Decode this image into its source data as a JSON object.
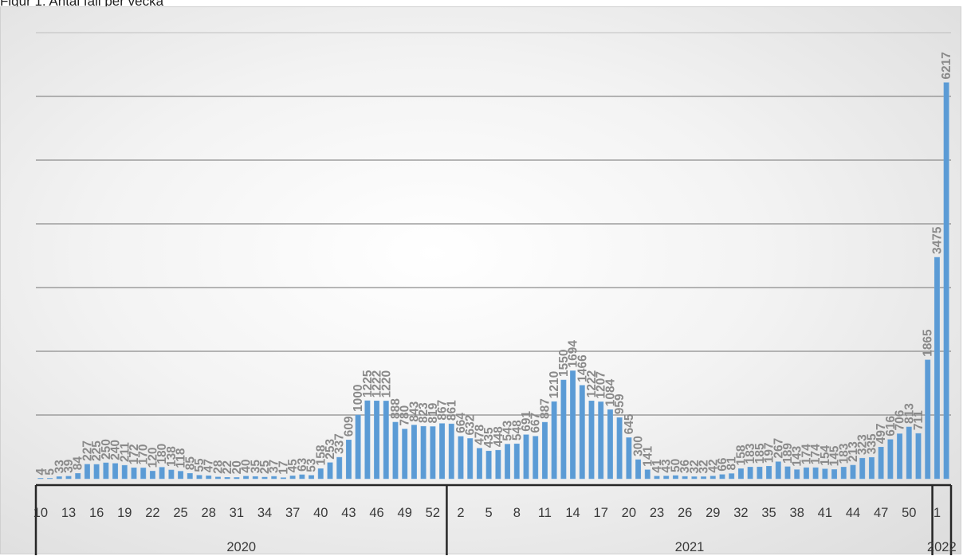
{
  "figure": {
    "caption": "Figur 1. Antal fall per vecka"
  },
  "chart_data": {
    "type": "bar",
    "title": "Figur 1. Antal fall per vecka",
    "xlabel": "",
    "ylabel": "",
    "ylim": [
      0,
      7000
    ],
    "y_gridlines": [
      1000,
      2000,
      3000,
      4000,
      5000,
      6000
    ],
    "grid": true,
    "legend": "none",
    "colors": {
      "bar": "#5b9bd5",
      "bar_edge": "#6fa8dc",
      "grid": "#8c8c8c",
      "axis": "#262626",
      "labels": "#8a8a8a"
    },
    "years": [
      {
        "label": "2020",
        "weeks": [
          10,
          11,
          12,
          13,
          14,
          15,
          16,
          17,
          18,
          19,
          20,
          21,
          22,
          23,
          24,
          25,
          26,
          27,
          28,
          29,
          30,
          31,
          32,
          33,
          34,
          35,
          36,
          37,
          38,
          39,
          40,
          41,
          42,
          43,
          44,
          45,
          46,
          47,
          48,
          49,
          50,
          51,
          52,
          53
        ]
      },
      {
        "label": "2021",
        "weeks": [
          1,
          2,
          3,
          4,
          5,
          6,
          7,
          8,
          9,
          10,
          11,
          12,
          13,
          14,
          15,
          16,
          17,
          18,
          19,
          20,
          21,
          22,
          23,
          24,
          25,
          26,
          27,
          28,
          29,
          30,
          31,
          32,
          33,
          34,
          35,
          36,
          37,
          38,
          39,
          40,
          41,
          42,
          43,
          44,
          45,
          46,
          47,
          48,
          49,
          50,
          51,
          52
        ]
      },
      {
        "label": "2022",
        "weeks": [
          1,
          2
        ]
      }
    ],
    "tick_labels": [
      {
        "index": 0,
        "label": "10"
      },
      {
        "index": 3,
        "label": "13"
      },
      {
        "index": 6,
        "label": "16"
      },
      {
        "index": 9,
        "label": "19"
      },
      {
        "index": 12,
        "label": "22"
      },
      {
        "index": 15,
        "label": "25"
      },
      {
        "index": 18,
        "label": "28"
      },
      {
        "index": 21,
        "label": "31"
      },
      {
        "index": 24,
        "label": "34"
      },
      {
        "index": 27,
        "label": "37"
      },
      {
        "index": 30,
        "label": "40"
      },
      {
        "index": 33,
        "label": "43"
      },
      {
        "index": 36,
        "label": "46"
      },
      {
        "index": 39,
        "label": "49"
      },
      {
        "index": 42,
        "label": "52"
      },
      {
        "index": 45,
        "label": "2"
      },
      {
        "index": 48,
        "label": "5"
      },
      {
        "index": 51,
        "label": "8"
      },
      {
        "index": 54,
        "label": "11"
      },
      {
        "index": 57,
        "label": "14"
      },
      {
        "index": 60,
        "label": "17"
      },
      {
        "index": 63,
        "label": "20"
      },
      {
        "index": 66,
        "label": "23"
      },
      {
        "index": 69,
        "label": "26"
      },
      {
        "index": 72,
        "label": "29"
      },
      {
        "index": 75,
        "label": "32"
      },
      {
        "index": 78,
        "label": "35"
      },
      {
        "index": 81,
        "label": "38"
      },
      {
        "index": 84,
        "label": "41"
      },
      {
        "index": 87,
        "label": "44"
      },
      {
        "index": 90,
        "label": "47"
      },
      {
        "index": 93,
        "label": "50"
      },
      {
        "index": 96,
        "label": "1"
      }
    ],
    "values": [
      4,
      5,
      33,
      39,
      84,
      227,
      225,
      250,
      240,
      211,
      172,
      170,
      120,
      180,
      138,
      118,
      85,
      55,
      47,
      28,
      22,
      20,
      40,
      35,
      25,
      37,
      17,
      45,
      63,
      53,
      158,
      253,
      337,
      609,
      1000,
      1225,
      1222,
      1220,
      888,
      780,
      843,
      823,
      819,
      867,
      861,
      664,
      632,
      478,
      435,
      448,
      543,
      548,
      691,
      667,
      887,
      1210,
      1550,
      1694,
      1466,
      1222,
      1207,
      1084,
      959,
      645,
      300,
      141,
      41,
      43,
      50,
      36,
      32,
      32,
      42,
      66,
      81,
      158,
      183,
      185,
      197,
      267,
      189,
      143,
      174,
      174,
      154,
      145,
      183,
      213,
      323,
      335,
      497,
      616,
      706,
      813,
      711,
      1865,
      3475,
      6217
    ]
  }
}
